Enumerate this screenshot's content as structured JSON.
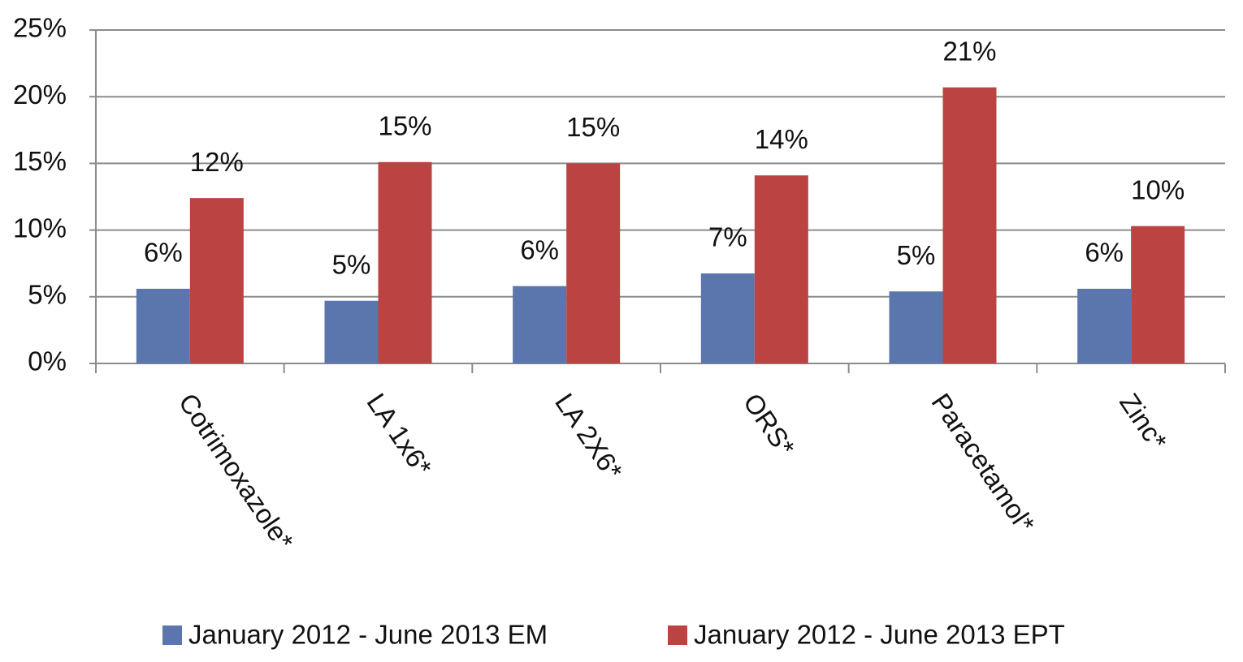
{
  "chart_data": {
    "type": "bar",
    "categories": [
      "Cotrimoxazole*",
      "LA 1x6*",
      "LA 2X6*",
      "ORS*",
      "Paracetamol*",
      "Zinc*"
    ],
    "series": [
      {
        "name": "January 2012 - June 2013 EM",
        "color": "#5b76ad",
        "values": [
          5.6,
          4.7,
          5.8,
          6.75,
          5.4,
          5.6
        ],
        "value_labels": [
          "6%",
          "5%",
          "6%",
          "7%",
          "5%",
          "6%"
        ]
      },
      {
        "name": "January 2012 - June 2013 EPT",
        "color": "#bb4442",
        "values": [
          12.4,
          15.1,
          15.0,
          14.1,
          20.7,
          10.3
        ],
        "value_labels": [
          "12%",
          "15%",
          "15%",
          "14%",
          "21%",
          "10%"
        ]
      }
    ],
    "ylim": [
      0,
      25
    ],
    "yticks": [
      {
        "value": 0,
        "label": "0%"
      },
      {
        "value": 5,
        "label": "5%"
      },
      {
        "value": 10,
        "label": "10%"
      },
      {
        "value": 15,
        "label": "15%"
      },
      {
        "value": 20,
        "label": "20%"
      },
      {
        "value": 25,
        "label": "25%"
      }
    ],
    "grid": true,
    "legend": "bottom"
  }
}
